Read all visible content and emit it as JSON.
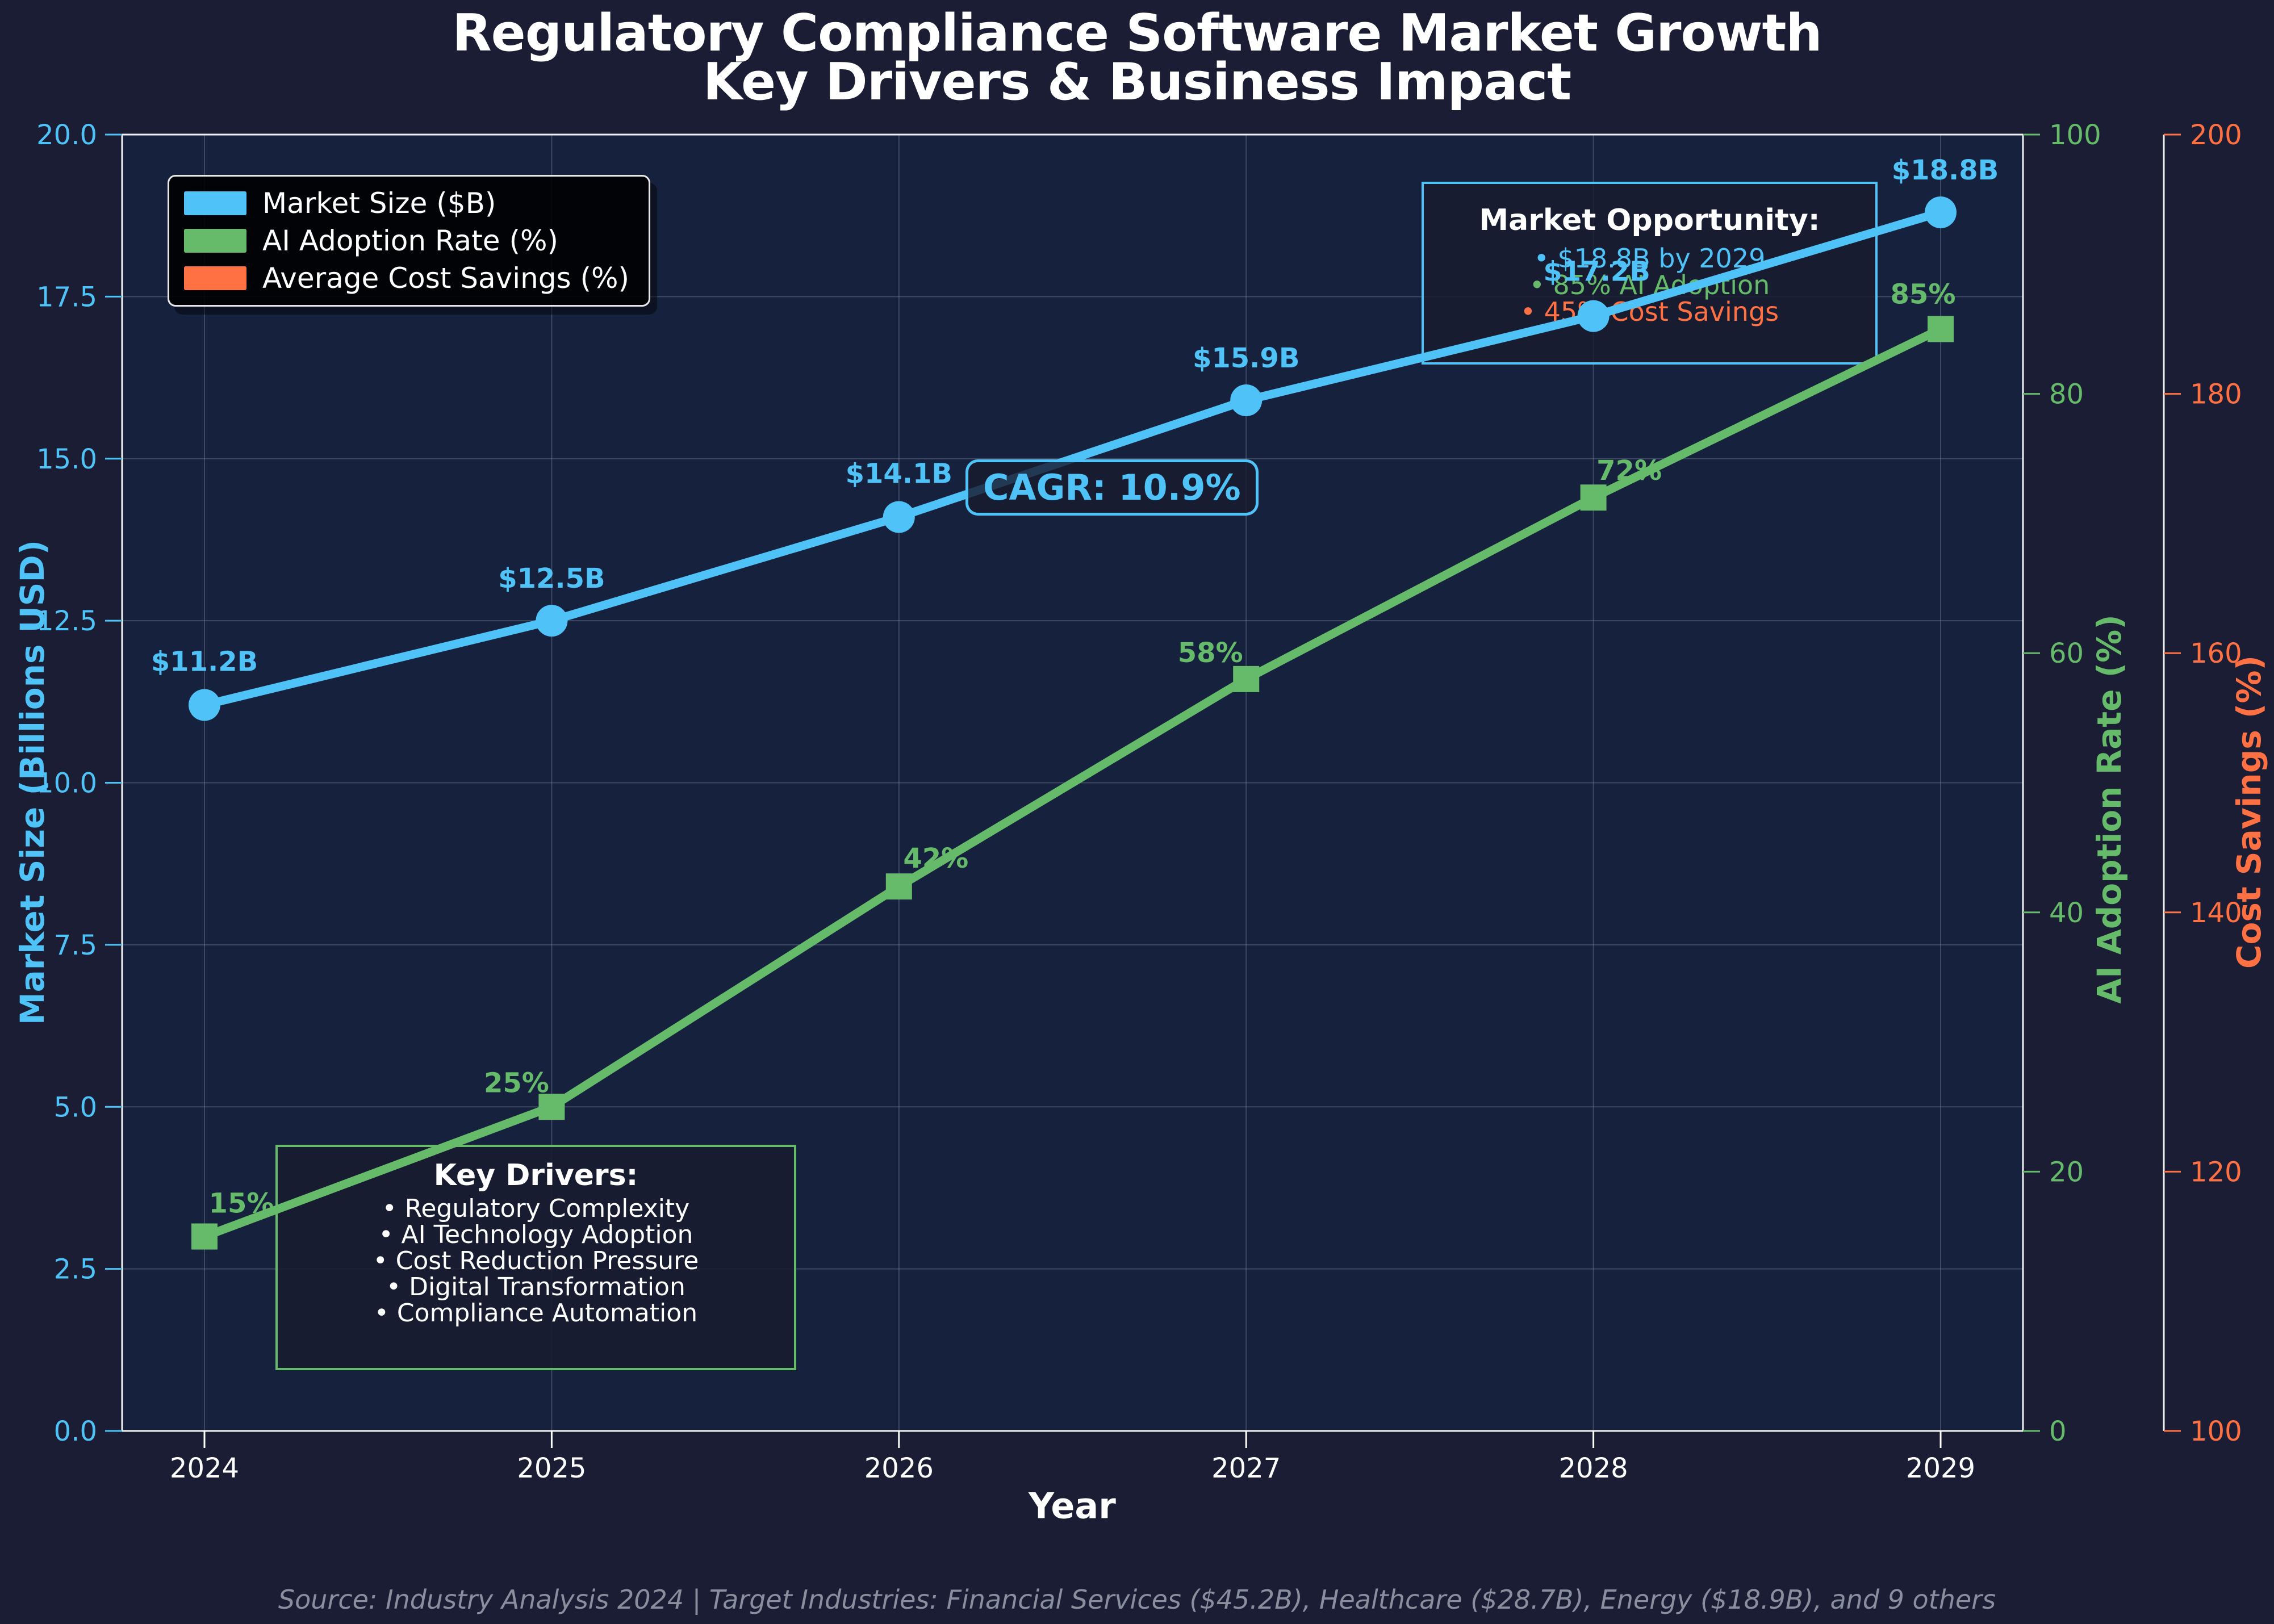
{
  "title": {
    "line1": "Regulatory Compliance Software Market Growth",
    "line2": "Key Drivers & Business Impact"
  },
  "legend": {
    "items": [
      {
        "label": "Market Size ($B)",
        "color": "#4FC3F7"
      },
      {
        "label": "AI Adoption Rate (%)",
        "color": "#66BB6A"
      },
      {
        "label": "Average Cost Savings (%)",
        "color": "#FF7043"
      }
    ]
  },
  "axes": {
    "x": {
      "label": "Year",
      "ticks": [
        "2024",
        "2025",
        "2026",
        "2027",
        "2028",
        "2029"
      ]
    },
    "y_left": {
      "label": "Market Size (Billions USD)",
      "color": "#4FC3F7",
      "min": 0,
      "max": 20,
      "ticks": [
        "0.0",
        "2.5",
        "5.0",
        "7.5",
        "10.0",
        "12.5",
        "15.0",
        "17.5",
        "20.0"
      ]
    },
    "y_right_green": {
      "label": "AI Adoption Rate (%)",
      "color": "#66BB6A",
      "min": 0,
      "max": 100,
      "ticks": [
        "0",
        "20",
        "40",
        "60",
        "80",
        "100"
      ]
    },
    "y_right_orange": {
      "label": "Cost Savings (%)",
      "color": "#FF7043",
      "min": 100,
      "max": 200,
      "ticks": [
        "100",
        "120",
        "140",
        "160",
        "180",
        "200"
      ]
    }
  },
  "chart_data": {
    "type": "line",
    "title": "Regulatory Compliance Software Market Growth — Key Drivers & Business Impact",
    "xlabel": "Year",
    "x": [
      2024,
      2025,
      2026,
      2027,
      2028,
      2029
    ],
    "series": [
      {
        "name": "Market Size ($B)",
        "axis": "left",
        "color": "#4FC3F7",
        "marker": "circle",
        "values": [
          11.2,
          12.5,
          14.1,
          15.9,
          17.2,
          18.8
        ],
        "labels": [
          "$11.2B",
          "$12.5B",
          "$14.1B",
          "$15.9B",
          "$17.2B",
          "$18.8B"
        ]
      },
      {
        "name": "AI Adoption Rate (%)",
        "axis": "right_green",
        "color": "#66BB6A",
        "marker": "square",
        "values": [
          15,
          25,
          42,
          58,
          72,
          85
        ],
        "labels": [
          "15%",
          "25%",
          "42%",
          "58%",
          "72%",
          "85%"
        ]
      }
    ],
    "ylabel_left": "Market Size (Billions USD)",
    "ylabel_right_green": "AI Adoption Rate (%)",
    "ylabel_right_orange": "Cost Savings (%)",
    "ylim_left": [
      0,
      20
    ],
    "ylim_right_green": [
      0,
      100
    ],
    "ylim_right_orange": [
      100,
      200
    ],
    "grid": true,
    "legend_position": "upper left"
  },
  "annotations": {
    "cagr": {
      "text": "CAGR: 10.9%",
      "color": "#4FC3F7"
    },
    "market_opportunity": {
      "title": "Market Opportunity:",
      "bullets": [
        {
          "text": "• $18.8B by 2029",
          "color": "#4FC3F7"
        },
        {
          "text": "• 85% AI Adoption",
          "color": "#66BB6A"
        },
        {
          "text": "• 45% Cost Savings",
          "color": "#FF7043"
        }
      ]
    },
    "key_drivers": {
      "title": "Key Drivers:",
      "bullets": [
        "• Regulatory Complexity",
        "• AI Technology Adoption",
        "• Cost Reduction Pressure",
        "• Digital Transformation",
        "• Compliance Automation"
      ]
    }
  },
  "footer": {
    "source": "Source: Industry Analysis 2024 | Target Industries: Financial Services ($45.2B), Healthcare ($28.7B), Energy ($18.9B), and 9 others"
  },
  "colors": {
    "background": "#1A1D33",
    "plot_background": "#16213E",
    "spine": "#F2F2F2",
    "grid": "#8891AA",
    "blue": "#4FC3F7",
    "green": "#66BB6A",
    "orange": "#FF7043",
    "footer_text": "#8A8F9E",
    "legend_bg": "#000000"
  }
}
